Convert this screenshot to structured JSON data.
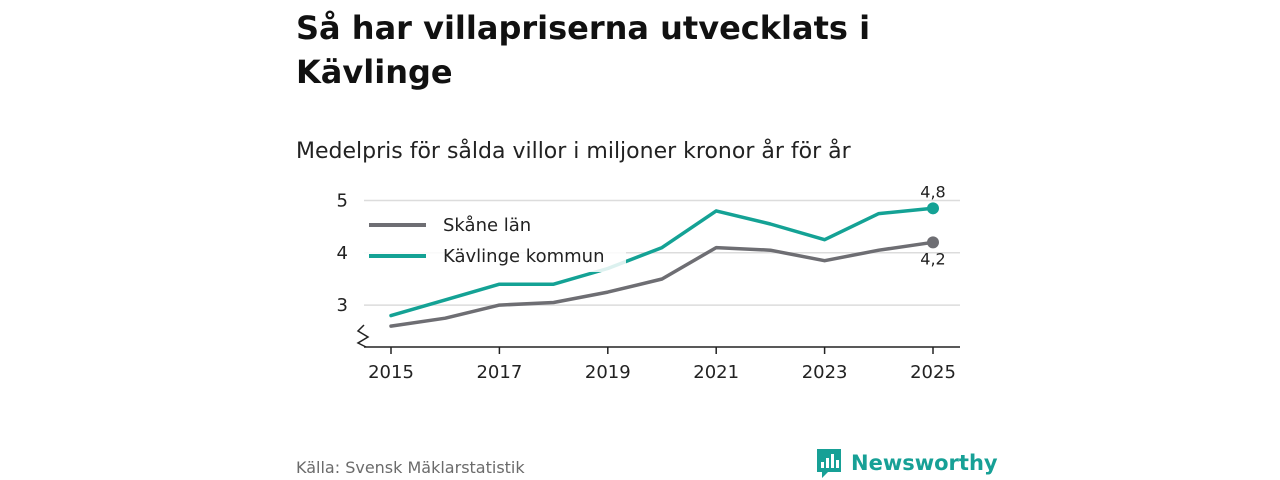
{
  "title": "Så har villapriserna utvecklats i Kävlinge",
  "subtitle": "Medelpris för sålda villor i miljoner kronor år för år",
  "source": "Källa: Svensk Mäklarstatistik",
  "brand": {
    "name": "Newsworthy",
    "logo_icon": "bar-chart-speech-bubble-icon",
    "color": "#17a096"
  },
  "colors": {
    "skane": "#6e6e73",
    "kavlinge": "#14a295",
    "grid": "#dcdcdc",
    "axis": "#222222"
  },
  "chart_data": {
    "type": "line",
    "title": "Så har villapriserna utvecklats i Kävlinge",
    "subtitle": "Medelpris för sålda villor i miljoner kronor år för år",
    "x": [
      2015,
      2016,
      2017,
      2018,
      2019,
      2020,
      2021,
      2022,
      2023,
      2024,
      2025
    ],
    "x_tick_labels": [
      "2015",
      "2017",
      "2019",
      "2021",
      "2023",
      "2025"
    ],
    "y_tick_labels": [
      "3",
      "4",
      "5"
    ],
    "ylim": [
      2.2,
      5.2
    ],
    "y_axis_break": true,
    "grid": true,
    "legend_position": "top-left",
    "series": [
      {
        "name": "Skåne län",
        "color": "#6e6e73",
        "values": [
          2.6,
          2.75,
          3.0,
          3.05,
          3.25,
          3.5,
          4.1,
          4.05,
          3.85,
          4.05,
          4.2
        ],
        "end_label": "4,2"
      },
      {
        "name": "Kävlinge kommun",
        "color": "#14a295",
        "values": [
          2.8,
          3.1,
          3.4,
          3.4,
          3.7,
          4.1,
          4.8,
          4.55,
          4.25,
          4.75,
          4.85
        ],
        "end_label": "4,8"
      }
    ]
  }
}
